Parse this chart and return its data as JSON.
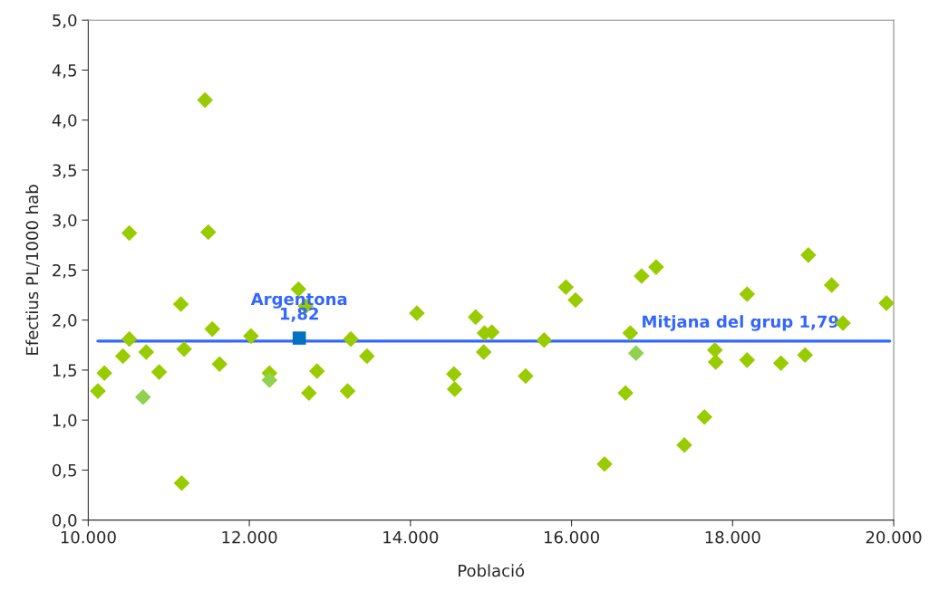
{
  "chart_data": {
    "type": "scatter",
    "xlabel": "Població",
    "ylabel": "Efectius PL/1000 hab",
    "grid": false,
    "legend": false,
    "xlim": [
      10000,
      20000
    ],
    "ylim": [
      0,
      5
    ],
    "xticks": [
      {
        "value": 10000,
        "label": "10.000"
      },
      {
        "value": 12000,
        "label": "12.000"
      },
      {
        "value": 14000,
        "label": "14.000"
      },
      {
        "value": 16000,
        "label": "16.000"
      },
      {
        "value": 18000,
        "label": "18.000"
      },
      {
        "value": 20000,
        "label": "20.000"
      }
    ],
    "yticks": [
      {
        "value": 0,
        "label": "0,0"
      },
      {
        "value": 0.5,
        "label": "0,5"
      },
      {
        "value": 1,
        "label": "1,0"
      },
      {
        "value": 1.5,
        "label": "1,5"
      },
      {
        "value": 2,
        "label": "2,0"
      },
      {
        "value": 2.5,
        "label": "2,5"
      },
      {
        "value": 3,
        "label": "3,0"
      },
      {
        "value": 3.5,
        "label": "3,5"
      },
      {
        "value": 4,
        "label": "4,0"
      },
      {
        "value": 4.5,
        "label": "4,5"
      },
      {
        "value": 5,
        "label": "5,0"
      }
    ],
    "series": [
      {
        "color": "#99cc00",
        "marker": "diamond",
        "x": [
          10120,
          10200,
          10430,
          10510,
          10510,
          10720,
          10880,
          11150,
          11190,
          11160,
          11450,
          11490,
          11540,
          11630,
          12020,
          12250,
          12610,
          12700,
          12740,
          12840,
          13220,
          13260,
          13460,
          14080,
          14540,
          14550,
          14810,
          14920,
          15010,
          14910,
          15430,
          15660,
          15930,
          16050,
          16410,
          16670,
          16730,
          16870,
          17050,
          17400,
          17650,
          17780,
          17790,
          18180,
          18180,
          18600,
          18900,
          18940,
          19230,
          19370,
          19910
        ],
        "values": [
          1.29,
          1.47,
          1.64,
          2.87,
          1.81,
          1.68,
          1.48,
          2.16,
          1.71,
          0.37,
          4.2,
          2.88,
          1.91,
          1.56,
          1.84,
          1.47,
          2.31,
          2.14,
          1.27,
          1.49,
          1.29,
          1.81,
          1.64,
          2.07,
          1.46,
          1.31,
          2.03,
          1.87,
          1.88,
          1.68,
          1.44,
          1.8,
          2.33,
          2.2,
          0.56,
          1.27,
          1.87,
          2.44,
          2.53,
          0.75,
          1.03,
          1.7,
          1.58,
          2.26,
          1.6,
          1.57,
          1.65,
          2.65,
          2.35,
          1.97,
          2.17
        ]
      },
      {
        "color": "#92d050",
        "marker": "diamond",
        "x": [
          10680,
          12250,
          16800
        ],
        "values": [
          1.23,
          1.4,
          1.67
        ]
      },
      {
        "color": "#0070c0",
        "marker": "square",
        "x": [
          12620
        ],
        "values": [
          1.82
        ]
      }
    ],
    "ref_lines": [
      {
        "axis": "y",
        "value": 1.79,
        "label": "Mitjana del grup 1,79",
        "color": "#3366ff",
        "line_style": "solid"
      }
    ],
    "annotations": [
      {
        "text": "Argentona\n1,82",
        "x": 12620,
        "y": 1.82
      }
    ]
  }
}
